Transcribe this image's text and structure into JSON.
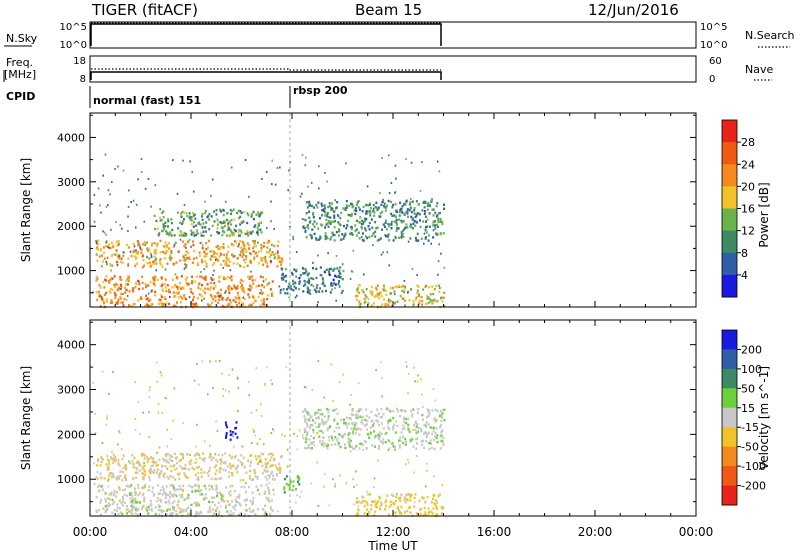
{
  "header": {
    "station": "TIGER (fitACF)",
    "beam": "Beam 15",
    "date": "12/Jun/2016"
  },
  "params": {
    "nsky_label": "N.Sky",
    "nsky_ticks": [
      "10^5",
      "10^0"
    ],
    "nsearch_label": "N.Search",
    "nsearch_ticks": [
      "10^5",
      "10^0"
    ],
    "freq_label_1": "Freq.",
    "freq_label_2": "[MHz]",
    "freq_ticks": [
      "18",
      "8"
    ],
    "nave_label": "Nave",
    "nave_ticks": [
      "60",
      "0"
    ],
    "cpid_label": "CPID",
    "cpid_segments": [
      {
        "label": "normal (fast) 151",
        "start_hour": 0
      },
      {
        "label": "rbsp 200",
        "start_hour": 8
      }
    ]
  },
  "chart_data": [
    {
      "type": "heatmap",
      "quantity": "Power",
      "colorbar_label": "Power [dB]",
      "colorbar_ticks": [
        "28",
        "24",
        "20",
        "16",
        "12",
        "8",
        "4"
      ],
      "colorbar_colors": [
        "#e8231c",
        "#f05a14",
        "#f48a1e",
        "#f2c22a",
        "#6bb24a",
        "#3d8a64",
        "#2f5fa6",
        "#1a1ae0"
      ],
      "ylabel": "Slant Range [km]",
      "y_ticks": [
        "1000",
        "2000",
        "3000",
        "4000"
      ],
      "ylim": [
        180,
        4550
      ],
      "data_end_hour": 14.1,
      "echo_regions": [
        {
          "start": 0.2,
          "end": 7.6,
          "range_low": 1100,
          "range_high": 1700,
          "value": 20
        },
        {
          "start": 0.2,
          "end": 7.2,
          "range_low": 200,
          "range_high": 900,
          "value": 22
        },
        {
          "start": 2.5,
          "end": 6.8,
          "range_low": 1800,
          "range_high": 2400,
          "value": 12
        },
        {
          "start": 8.4,
          "end": 14.0,
          "range_low": 1700,
          "range_high": 2600,
          "value": 10
        },
        {
          "start": 10.5,
          "end": 14.0,
          "range_low": 200,
          "range_high": 700,
          "value": 18
        },
        {
          "start": 7.5,
          "end": 10.0,
          "range_low": 500,
          "range_high": 1100,
          "value": 8
        }
      ]
    },
    {
      "type": "heatmap",
      "quantity": "Velocity",
      "colorbar_label": "Velocity [m s^-1]",
      "colorbar_ticks": [
        "200",
        "100",
        "50",
        "15",
        "-15",
        "-50",
        "-100",
        "-200"
      ],
      "colorbar_colors": [
        "#1a1ae0",
        "#2f5fa6",
        "#3d8a64",
        "#6ccf3c",
        "#c8c8c8",
        "#f2c22a",
        "#f48a1e",
        "#f05a14",
        "#e8231c"
      ],
      "ylabel": "Slant Range [km]",
      "y_ticks": [
        "1000",
        "2000",
        "3000",
        "4000"
      ],
      "ylim": [
        180,
        4550
      ],
      "xlabel": "Time UT",
      "x_ticks": [
        "00:00",
        "04:00",
        "08:00",
        "12:00",
        "16:00",
        "20:00",
        "00:00"
      ],
      "xlim_hours": [
        0,
        24
      ],
      "data_end_hour": 14.1,
      "echo_regions": [
        {
          "start": 0.2,
          "end": 7.6,
          "range_low": 1000,
          "range_high": 1600,
          "value": -10
        },
        {
          "start": 0.2,
          "end": 7.2,
          "range_low": 200,
          "range_high": 900,
          "value": 0
        },
        {
          "start": 8.4,
          "end": 14.0,
          "range_low": 1700,
          "range_high": 2600,
          "value": 5
        },
        {
          "start": 10.5,
          "end": 14.0,
          "range_low": 200,
          "range_high": 700,
          "value": -30
        },
        {
          "start": 5.3,
          "end": 5.8,
          "range_low": 1900,
          "range_high": 2300,
          "value": 220
        },
        {
          "start": 7.6,
          "end": 8.3,
          "range_low": 700,
          "range_high": 1100,
          "value": 40
        }
      ]
    }
  ]
}
